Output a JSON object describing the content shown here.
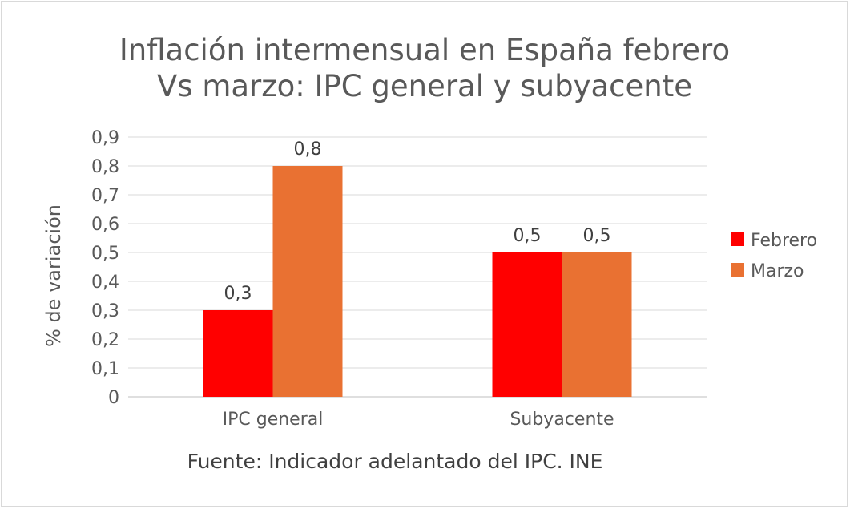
{
  "chart_data": {
    "type": "bar",
    "title_lines": [
      "Inflación intermensual en España febrero",
      "Vs marzo: IPC general y subyacente"
    ],
    "xlabel": "Fuente: Indicador adelantado del IPC. INE",
    "ylabel": "% de variación",
    "categories": [
      "IPC general",
      "Subyacente"
    ],
    "series": [
      {
        "name": "Febrero",
        "values": [
          0.3,
          0.5
        ],
        "color": "#ff0000"
      },
      {
        "name": "Marzo",
        "values": [
          0.8,
          0.5
        ],
        "color": "#e97132"
      }
    ],
    "data_labels": [
      [
        "0,3",
        "0,5"
      ],
      [
        "0,8",
        "0,5"
      ]
    ],
    "ylim": [
      0,
      0.9
    ],
    "yticks": [
      0,
      0.1,
      0.2,
      0.3,
      0.4,
      0.5,
      0.6,
      0.7,
      0.8,
      0.9
    ],
    "ytick_labels": [
      "0",
      "0,1",
      "0,2",
      "0,3",
      "0,4",
      "0,5",
      "0,6",
      "0,7",
      "0,8",
      "0,9"
    ],
    "grid": true,
    "legend_position": "right"
  }
}
